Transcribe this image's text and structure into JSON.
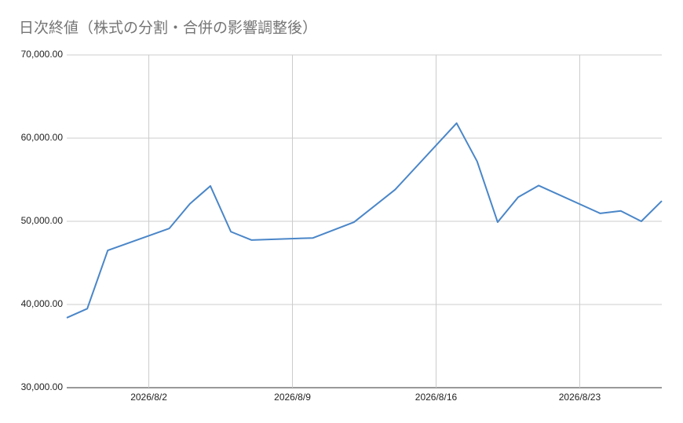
{
  "chart_data": {
    "type": "line",
    "title": "日次終値（株式の分割・合併の影響調整後）",
    "x": [
      "2026/7/29",
      "2026/7/30",
      "2026/7/31",
      "2026/8/3",
      "2026/8/4",
      "2026/8/5",
      "2026/8/6",
      "2026/8/7",
      "2026/8/10",
      "2026/8/12",
      "2026/8/14",
      "2026/8/17",
      "2026/8/18",
      "2026/8/19",
      "2026/8/20",
      "2026/8/21",
      "2026/8/24",
      "2026/8/25",
      "2026/8/26",
      "2026/8/27"
    ],
    "series": [
      {
        "name": "終値",
        "color": "#4a86c8",
        "values": [
          38400,
          39500,
          46500,
          49150,
          52100,
          54250,
          48750,
          47750,
          48000,
          49900,
          53800,
          61800,
          57200,
          49900,
          52900,
          54300,
          50950,
          51250,
          50000,
          52450
        ]
      }
    ],
    "xlim": [
      "2026/7/29",
      "2026/8/27"
    ],
    "xticks": [
      "2026/8/2",
      "2026/8/9",
      "2026/8/16",
      "2026/8/23"
    ],
    "ylim": [
      30000,
      70000
    ],
    "yticks": [
      {
        "value": 30000,
        "label": "30,000.00"
      },
      {
        "value": 40000,
        "label": "40,000.00"
      },
      {
        "value": 50000,
        "label": "50,000.00"
      },
      {
        "value": 60000,
        "label": "60,000.00"
      },
      {
        "value": 70000,
        "label": "70,000.00"
      }
    ],
    "grid": true
  }
}
